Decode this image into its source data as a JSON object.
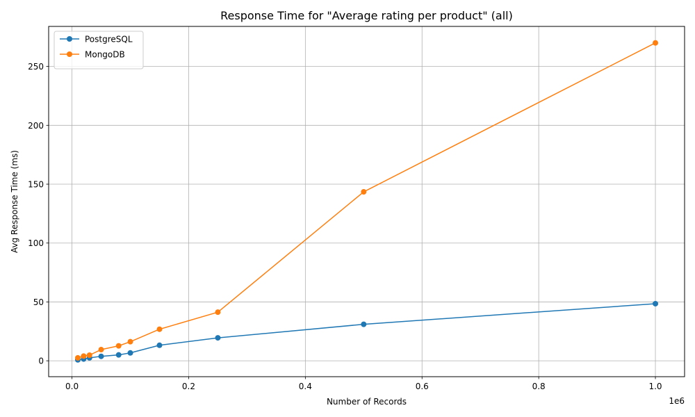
{
  "chart_data": {
    "type": "line",
    "title": "Response Time for \"Average rating per product\" (all)",
    "xlabel": "Number of Records",
    "ylabel": "Avg Response Time (ms)",
    "x_multiplier_label": "1e6",
    "xlim": [
      -40000,
      1050000
    ],
    "ylim": [
      -13.5,
      284
    ],
    "x_ticks": [
      {
        "value": 0,
        "label": "0.0"
      },
      {
        "value": 200000,
        "label": "0.2"
      },
      {
        "value": 400000,
        "label": "0.4"
      },
      {
        "value": 600000,
        "label": "0.6"
      },
      {
        "value": 800000,
        "label": "0.8"
      },
      {
        "value": 1000000,
        "label": "1.0"
      }
    ],
    "y_ticks": [
      {
        "value": 0,
        "label": "0"
      },
      {
        "value": 50,
        "label": "50"
      },
      {
        "value": 100,
        "label": "100"
      },
      {
        "value": 150,
        "label": "150"
      },
      {
        "value": 200,
        "label": "200"
      },
      {
        "value": 250,
        "label": "250"
      }
    ],
    "grid": true,
    "legend_position": "top-left",
    "x": [
      10000,
      20000,
      30000,
      50000,
      80000,
      100000,
      150000,
      250000,
      500000,
      1000000
    ],
    "series": [
      {
        "name": "PostgreSQL",
        "color": "#1f77b4",
        "values": [
          0.8,
          1.5,
          2.5,
          3.8,
          5.0,
          6.7,
          13.2,
          19.5,
          31.0,
          48.5
        ]
      },
      {
        "name": "MongoDB",
        "color": "#ff7f0e",
        "values": [
          2.5,
          4.0,
          4.8,
          9.5,
          12.7,
          16.2,
          26.8,
          41.3,
          143.5,
          270.0
        ]
      }
    ]
  }
}
